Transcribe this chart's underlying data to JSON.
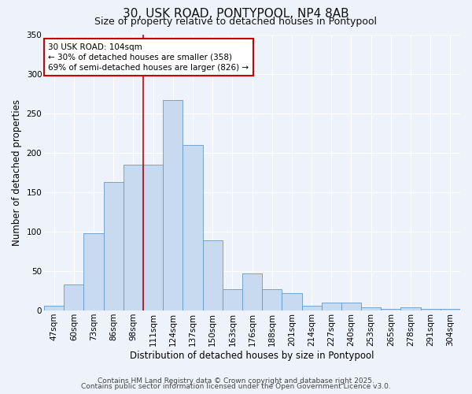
{
  "title": "30, USK ROAD, PONTYPOOL, NP4 8AB",
  "subtitle": "Size of property relative to detached houses in Pontypool",
  "xlabel": "Distribution of detached houses by size in Pontypool",
  "ylabel": "Number of detached properties",
  "footnote1": "Contains HM Land Registry data © Crown copyright and database right 2025.",
  "footnote2": "Contains public sector information licensed under the Open Government Licence v3.0.",
  "categories": [
    "47sqm",
    "60sqm",
    "73sqm",
    "86sqm",
    "98sqm",
    "111sqm",
    "124sqm",
    "137sqm",
    "150sqm",
    "163sqm",
    "176sqm",
    "188sqm",
    "201sqm",
    "214sqm",
    "227sqm",
    "240sqm",
    "253sqm",
    "265sqm",
    "278sqm",
    "291sqm",
    "304sqm"
  ],
  "values": [
    6,
    33,
    98,
    163,
    185,
    185,
    267,
    210,
    89,
    27,
    47,
    27,
    22,
    6,
    10,
    10,
    4,
    2,
    4,
    2,
    2
  ],
  "bar_color": "#c8daf0",
  "bar_edge_color": "#6699cc",
  "vline_color": "#cc0000",
  "annotation_title": "30 USK ROAD: 104sqm",
  "annotation_line1": "← 30% of detached houses are smaller (358)",
  "annotation_line2": "69% of semi-detached houses are larger (826) →",
  "annotation_box_color": "#ffffff",
  "annotation_box_edge": "#cc0000",
  "ylim": [
    0,
    350
  ],
  "yticks": [
    0,
    50,
    100,
    150,
    200,
    250,
    300,
    350
  ],
  "bg_color": "#eef2fa",
  "grid_color": "#ffffff",
  "title_fontsize": 11,
  "subtitle_fontsize": 9,
  "axis_label_fontsize": 8.5,
  "tick_fontsize": 7.5,
  "annotation_fontsize": 7.5,
  "footnote_fontsize": 6.5
}
